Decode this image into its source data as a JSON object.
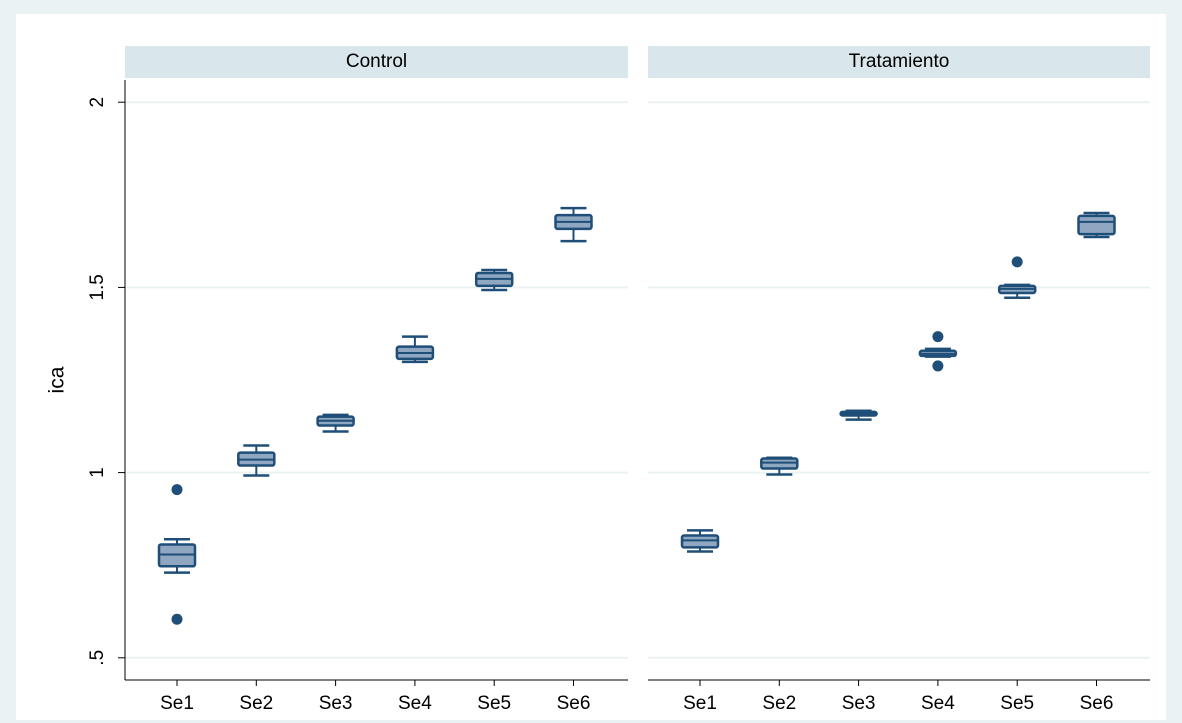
{
  "chart_data": [
    {
      "type": "box",
      "title": "Control",
      "ylabel": "ica",
      "categories": [
        "Se1",
        "Se2",
        "Se3",
        "Se4",
        "Se5",
        "Se6"
      ],
      "color": "#8fa7c0",
      "edge_color": "#1f4e79",
      "ylim": [
        0.44,
        2.06
      ],
      "yticks": [
        {
          "value": 0.5,
          "label": ".5"
        },
        1,
        1.5,
        2
      ],
      "grid": true,
      "boxes": [
        {
          "whisker_low": 0.73,
          "q1": 0.747,
          "median": 0.779,
          "q3": 0.806,
          "whisker_high": 0.82,
          "outliers": [
            0.954,
            0.604
          ]
        },
        {
          "whisker_low": 0.992,
          "q1": 1.019,
          "median": 1.035,
          "q3": 1.054,
          "whisker_high": 1.073,
          "outliers": []
        },
        {
          "whisker_low": 1.111,
          "q1": 1.127,
          "median": 1.14,
          "q3": 1.151,
          "whisker_high": 1.156,
          "outliers": []
        },
        {
          "whisker_low": 1.299,
          "q1": 1.307,
          "median": 1.323,
          "q3": 1.34,
          "whisker_high": 1.367,
          "outliers": []
        },
        {
          "whisker_low": 1.493,
          "q1": 1.504,
          "median": 1.523,
          "q3": 1.539,
          "whisker_high": 1.547,
          "outliers": []
        },
        {
          "whisker_low": 1.625,
          "q1": 1.658,
          "median": 1.677,
          "q3": 1.695,
          "whisker_high": 1.714,
          "outliers": []
        }
      ]
    },
    {
      "type": "box",
      "title": "Tratamiento",
      "categories": [
        "Se1",
        "Se2",
        "Se3",
        "Se4",
        "Se5",
        "Se6"
      ],
      "color": "#8fa7c0",
      "edge_color": "#1f4e79",
      "boxes": [
        {
          "whisker_low": 0.787,
          "q1": 0.798,
          "median": 0.817,
          "q3": 0.83,
          "whisker_high": 0.844,
          "outliers": []
        },
        {
          "whisker_low": 0.995,
          "q1": 1.011,
          "median": 1.027,
          "q3": 1.038,
          "whisker_high": 1.04,
          "outliers": []
        },
        {
          "whisker_low": 1.143,
          "q1": 1.154,
          "median": 1.159,
          "q3": 1.164,
          "whisker_high": 1.167,
          "outliers": []
        },
        {
          "whisker_low": 1.313,
          "q1": 1.315,
          "median": 1.321,
          "q3": 1.329,
          "whisker_high": 1.334,
          "outliers": [
            1.367,
            1.288
          ]
        },
        {
          "whisker_low": 1.472,
          "q1": 1.485,
          "median": 1.496,
          "q3": 1.504,
          "whisker_high": 1.507,
          "outliers": [
            1.569
          ]
        },
        {
          "whisker_low": 1.636,
          "q1": 1.644,
          "median": 1.677,
          "q3": 1.693,
          "whisker_high": 1.701,
          "outliers": []
        }
      ]
    }
  ]
}
